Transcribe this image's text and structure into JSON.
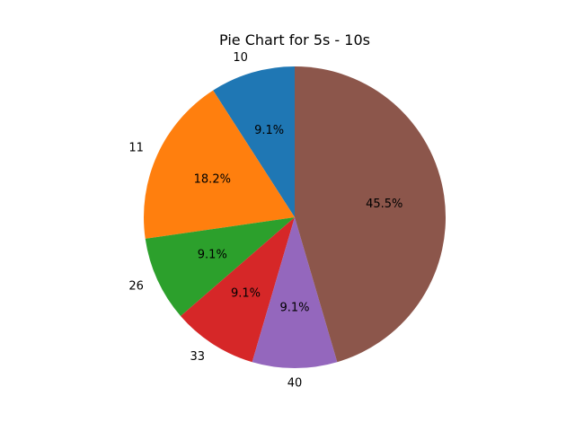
{
  "chart_data": {
    "type": "pie",
    "title": "Pie Chart for 5s - 10s",
    "start_angle_deg": 90,
    "direction": "counterclockwise",
    "slices": [
      {
        "label": "10",
        "value": 1,
        "percent_label": "9.1%",
        "color": "#1f77b4"
      },
      {
        "label": "11",
        "value": 2,
        "percent_label": "18.2%",
        "color": "#ff7f0e"
      },
      {
        "label": "26",
        "value": 1,
        "percent_label": "9.1%",
        "color": "#2ca02c"
      },
      {
        "label": "33",
        "value": 1,
        "percent_label": "9.1%",
        "color": "#d62728"
      },
      {
        "label": "40",
        "value": 1,
        "percent_label": "9.1%",
        "color": "#9467bd"
      },
      {
        "label": "",
        "value": 5,
        "percent_label": "45.5%",
        "color": "#8c564b"
      }
    ]
  }
}
